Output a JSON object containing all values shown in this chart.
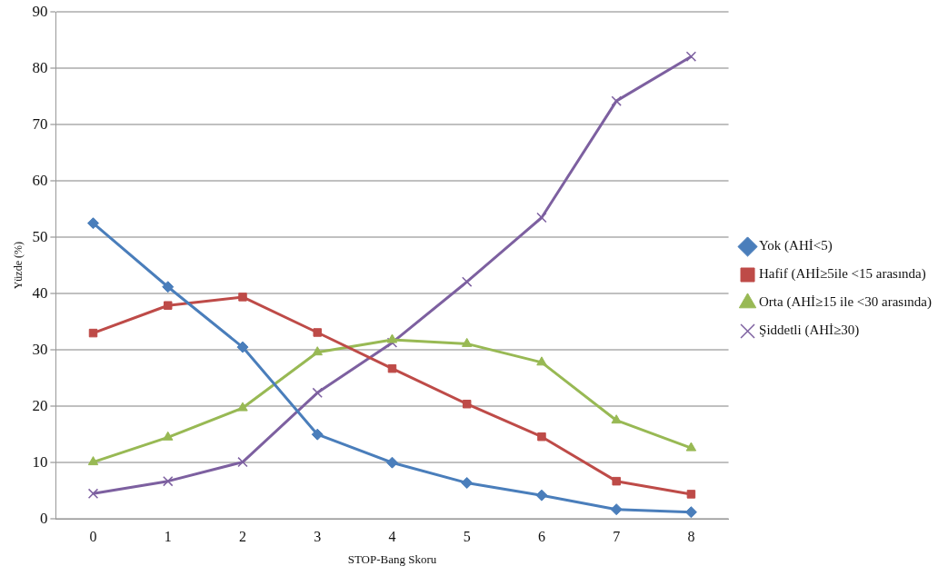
{
  "chart_data": {
    "type": "line",
    "xlabel": "STOP-Bang Skoru",
    "ylabel": "Yüzde (%)",
    "categories": [
      "0",
      "1",
      "2",
      "3",
      "4",
      "5",
      "6",
      "7",
      "8"
    ],
    "ylim": [
      0,
      90
    ],
    "yticks": [
      0,
      10,
      20,
      30,
      40,
      50,
      60,
      70,
      80,
      90
    ],
    "grid": "y",
    "legend": "right",
    "series": [
      {
        "name": "Yok (AHİ<5)",
        "color": "#4a7ebb",
        "marker": "diamond",
        "values": [
          52.5,
          41.2,
          30.5,
          15,
          10,
          6.4,
          4.2,
          1.7,
          1.2
        ]
      },
      {
        "name": "Hafif (AHİ≥5ile <15 arasında)",
        "color": "#be4b48",
        "marker": "square",
        "values": [
          33,
          37.9,
          39.4,
          33.1,
          26.7,
          20.4,
          14.6,
          6.7,
          4.4
        ]
      },
      {
        "name": "Orta (AHİ≥15 ile <30 arasında)",
        "color": "#98b954",
        "marker": "triangle",
        "values": [
          10.1,
          14.5,
          19.7,
          29.6,
          31.8,
          31.1,
          27.8,
          17.5,
          12.6
        ]
      },
      {
        "name": "Şiddetli (AHİ≥30)",
        "color": "#7d60a0",
        "marker": "cross",
        "values": [
          4.5,
          6.7,
          10.1,
          22.4,
          31.3,
          42.1,
          53.5,
          74.2,
          82.1
        ]
      }
    ]
  }
}
